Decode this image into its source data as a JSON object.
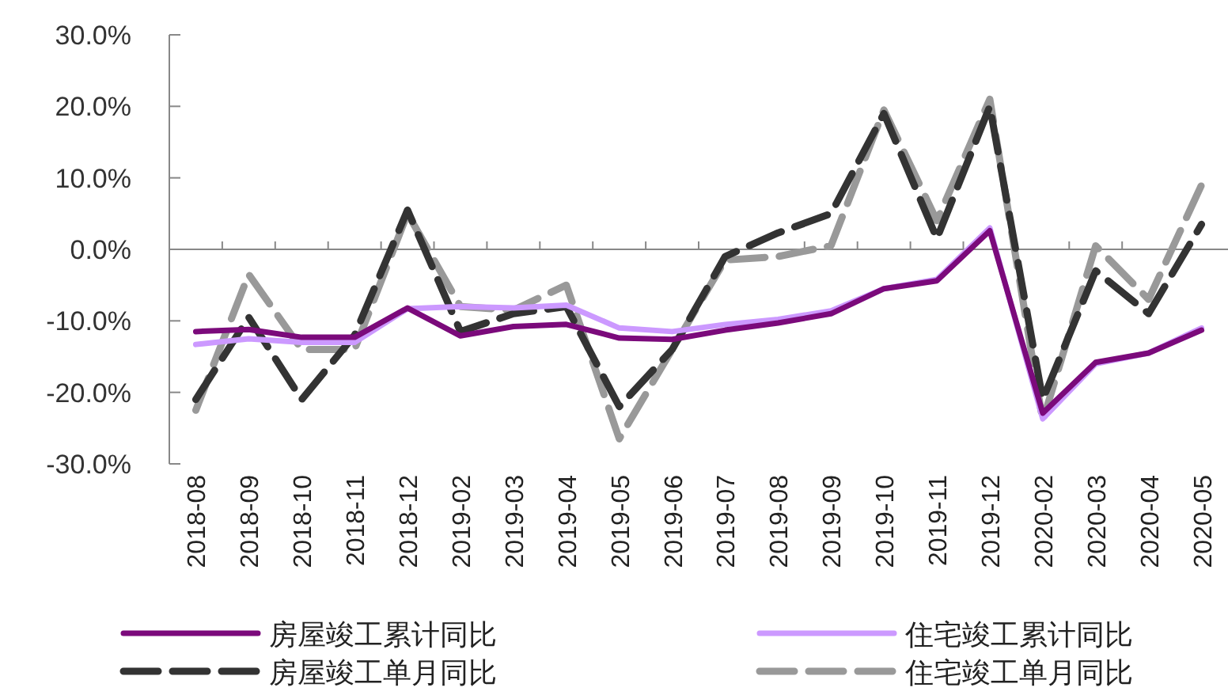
{
  "chart_data": {
    "type": "line",
    "categories": [
      "2018-08",
      "2018-09",
      "2018-10",
      "2018-11",
      "2018-12",
      "2019-02",
      "2019-03",
      "2019-04",
      "2019-05",
      "2019-06",
      "2019-07",
      "2019-08",
      "2019-09",
      "2019-10",
      "2019-11",
      "2019-12",
      "2020-02",
      "2020-03",
      "2020-04",
      "2020-05"
    ],
    "series": [
      {
        "name": "房屋竣工累计同比",
        "color": "#7b0a7b",
        "line_style": "solid",
        "values": [
          -11.5,
          -11.2,
          -12.3,
          -12.3,
          -8.2,
          -12.1,
          -10.8,
          -10.5,
          -12.4,
          -12.6,
          -11.3,
          -10.3,
          -9.0,
          -5.5,
          -4.4,
          2.6,
          -22.9,
          -15.8,
          -14.5,
          -11.3
        ]
      },
      {
        "name": "住宅竣工累计同比",
        "color": "#cc99ff",
        "line_style": "solid",
        "values": [
          -13.3,
          -12.5,
          -13.0,
          -13.0,
          -8.3,
          -8.0,
          -8.2,
          -7.8,
          -11.0,
          -11.5,
          -10.5,
          -9.8,
          -8.6,
          -5.5,
          -4.2,
          3.0,
          -23.7,
          -16.0,
          -14.5,
          -11.0
        ]
      },
      {
        "name": "房屋竣工单月同比",
        "color": "#333333",
        "line_style": "dashed",
        "values": [
          -21.0,
          -9.5,
          -21.0,
          -12.0,
          5.5,
          -11.5,
          -9.0,
          -8.0,
          -22.0,
          -14.0,
          -1.0,
          2.3,
          5.0,
          19.0,
          1.5,
          20.0,
          -21.0,
          -3.0,
          -9.0,
          3.5
        ]
      },
      {
        "name": "住宅竣工单月同比",
        "color": "#999999",
        "line_style": "dashed",
        "values": [
          -22.5,
          -3.5,
          -14.0,
          -14.0,
          5.0,
          -8.0,
          -8.5,
          -5.0,
          -26.5,
          -14.0,
          -1.5,
          -1.0,
          0.5,
          19.5,
          4.0,
          21.0,
          -24.0,
          0.5,
          -7.0,
          9.0
        ]
      }
    ],
    "ylim": [
      -30,
      30
    ],
    "yticks": [
      {
        "value": -30,
        "label": "-30.0%"
      },
      {
        "value": -20,
        "label": "-20.0%"
      },
      {
        "value": -10,
        "label": "-10.0%"
      },
      {
        "value": 0,
        "label": "0.0%"
      },
      {
        "value": 10,
        "label": "10.0%"
      },
      {
        "value": 20,
        "label": "20.0%"
      },
      {
        "value": 30,
        "label": "30.0%"
      }
    ],
    "grid": false,
    "ref_lines": [
      {
        "axis": "y",
        "value": 0,
        "color": "#888888"
      }
    ],
    "legend": "bottom",
    "marker": "none"
  }
}
